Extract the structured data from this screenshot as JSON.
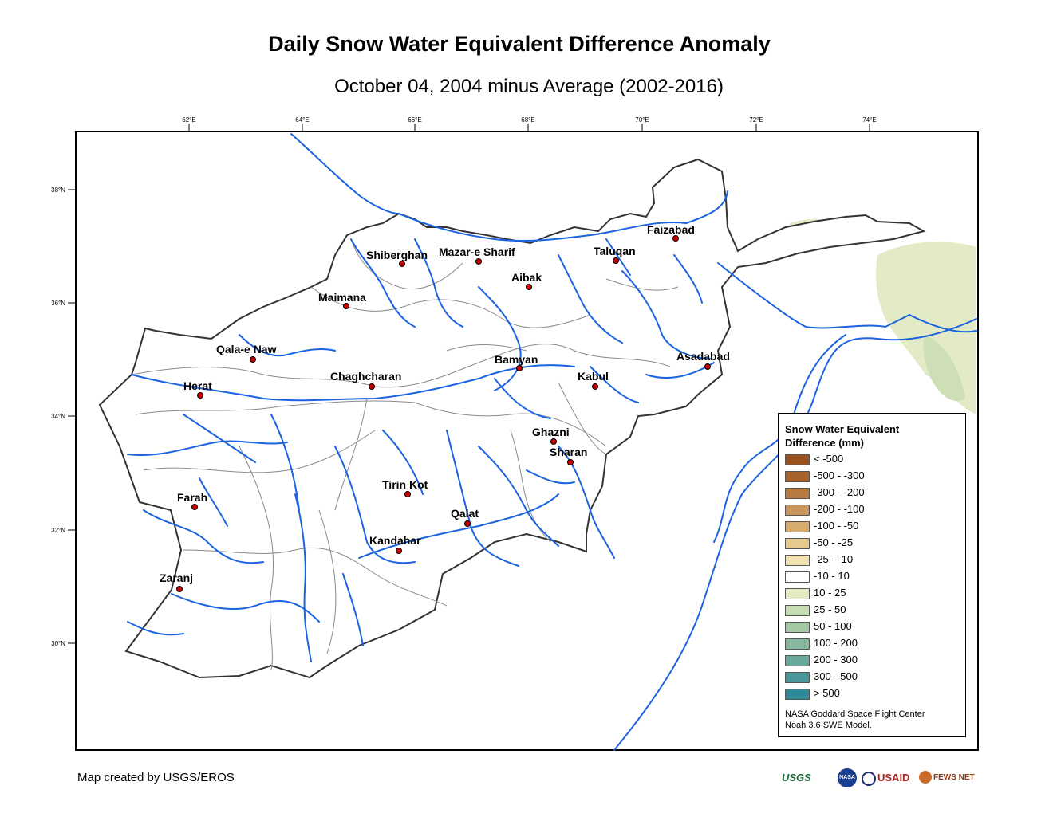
{
  "title": "Daily Snow Water Equivalent Difference Anomaly",
  "subtitle": "October 04, 2004 minus Average (2002-2016)",
  "credit": "Map created by USGS/EROS",
  "longitude_ticks": [
    "62°E",
    "64°E",
    "66°E",
    "68°E",
    "70°E",
    "72°E",
    "74°E"
  ],
  "latitude_ticks": [
    "38°N",
    "36°N",
    "34°N",
    "32°N",
    "30°N"
  ],
  "cities": [
    {
      "name": "Faizabad"
    },
    {
      "name": "Shiberghan"
    },
    {
      "name": "Mazar-e Sharif"
    },
    {
      "name": "Taluqan"
    },
    {
      "name": "Aibak"
    },
    {
      "name": "Maimana"
    },
    {
      "name": "Qala-e Naw"
    },
    {
      "name": "Asadabad"
    },
    {
      "name": "Bamyan"
    },
    {
      "name": "Herat"
    },
    {
      "name": "Chaghcharan"
    },
    {
      "name": "Kabul"
    },
    {
      "name": "Ghazni"
    },
    {
      "name": "Sharan"
    },
    {
      "name": "Tirin Kot"
    },
    {
      "name": "Farah"
    },
    {
      "name": "Qalat"
    },
    {
      "name": "Kandahar"
    },
    {
      "name": "Zaranj"
    }
  ],
  "legend": {
    "title_line1": "Snow Water Equivalent",
    "title_line2": "Difference (mm)",
    "classes": [
      {
        "label": "< -500",
        "color": "#9a5220"
      },
      {
        "label": "-500 - -300",
        "color": "#a8622c"
      },
      {
        "label": "-300 - -200",
        "color": "#b77a43"
      },
      {
        "label": "-200 - -100",
        "color": "#c79559"
      },
      {
        "label": "-100 - -50",
        "color": "#d6ad6f"
      },
      {
        "label": "-50 - -25",
        "color": "#e6c98d"
      },
      {
        "label": "-25 - -10",
        "color": "#f2e3b3"
      },
      {
        "label": "-10 - 10",
        "color": "#ffffff"
      },
      {
        "label": "10 - 25",
        "color": "#e3ebc2"
      },
      {
        "label": "25 - 50",
        "color": "#c6dcb2"
      },
      {
        "label": "50 - 100",
        "color": "#a5c9a5"
      },
      {
        "label": "100 - 200",
        "color": "#86b8a0"
      },
      {
        "label": "200 - 300",
        "color": "#6aa89c"
      },
      {
        "label": "300 - 500",
        "color": "#4a979a"
      },
      {
        "label": "> 500",
        "color": "#2f8a98"
      }
    ],
    "note_line1": "NASA Goddard Space Flight Center",
    "note_line2": "Noah 3.6 SWE Model."
  },
  "logos": {
    "usgs": "USGS",
    "nasa": "NASA",
    "usaid": "USAID",
    "fewsnet": "FEWS NET"
  },
  "colors": {
    "river": "#1b63e0",
    "border": "#333333",
    "basin_line": "#8a8a8a",
    "city_marker": "#cc0000",
    "snow_positive": "#dfe8c0"
  }
}
